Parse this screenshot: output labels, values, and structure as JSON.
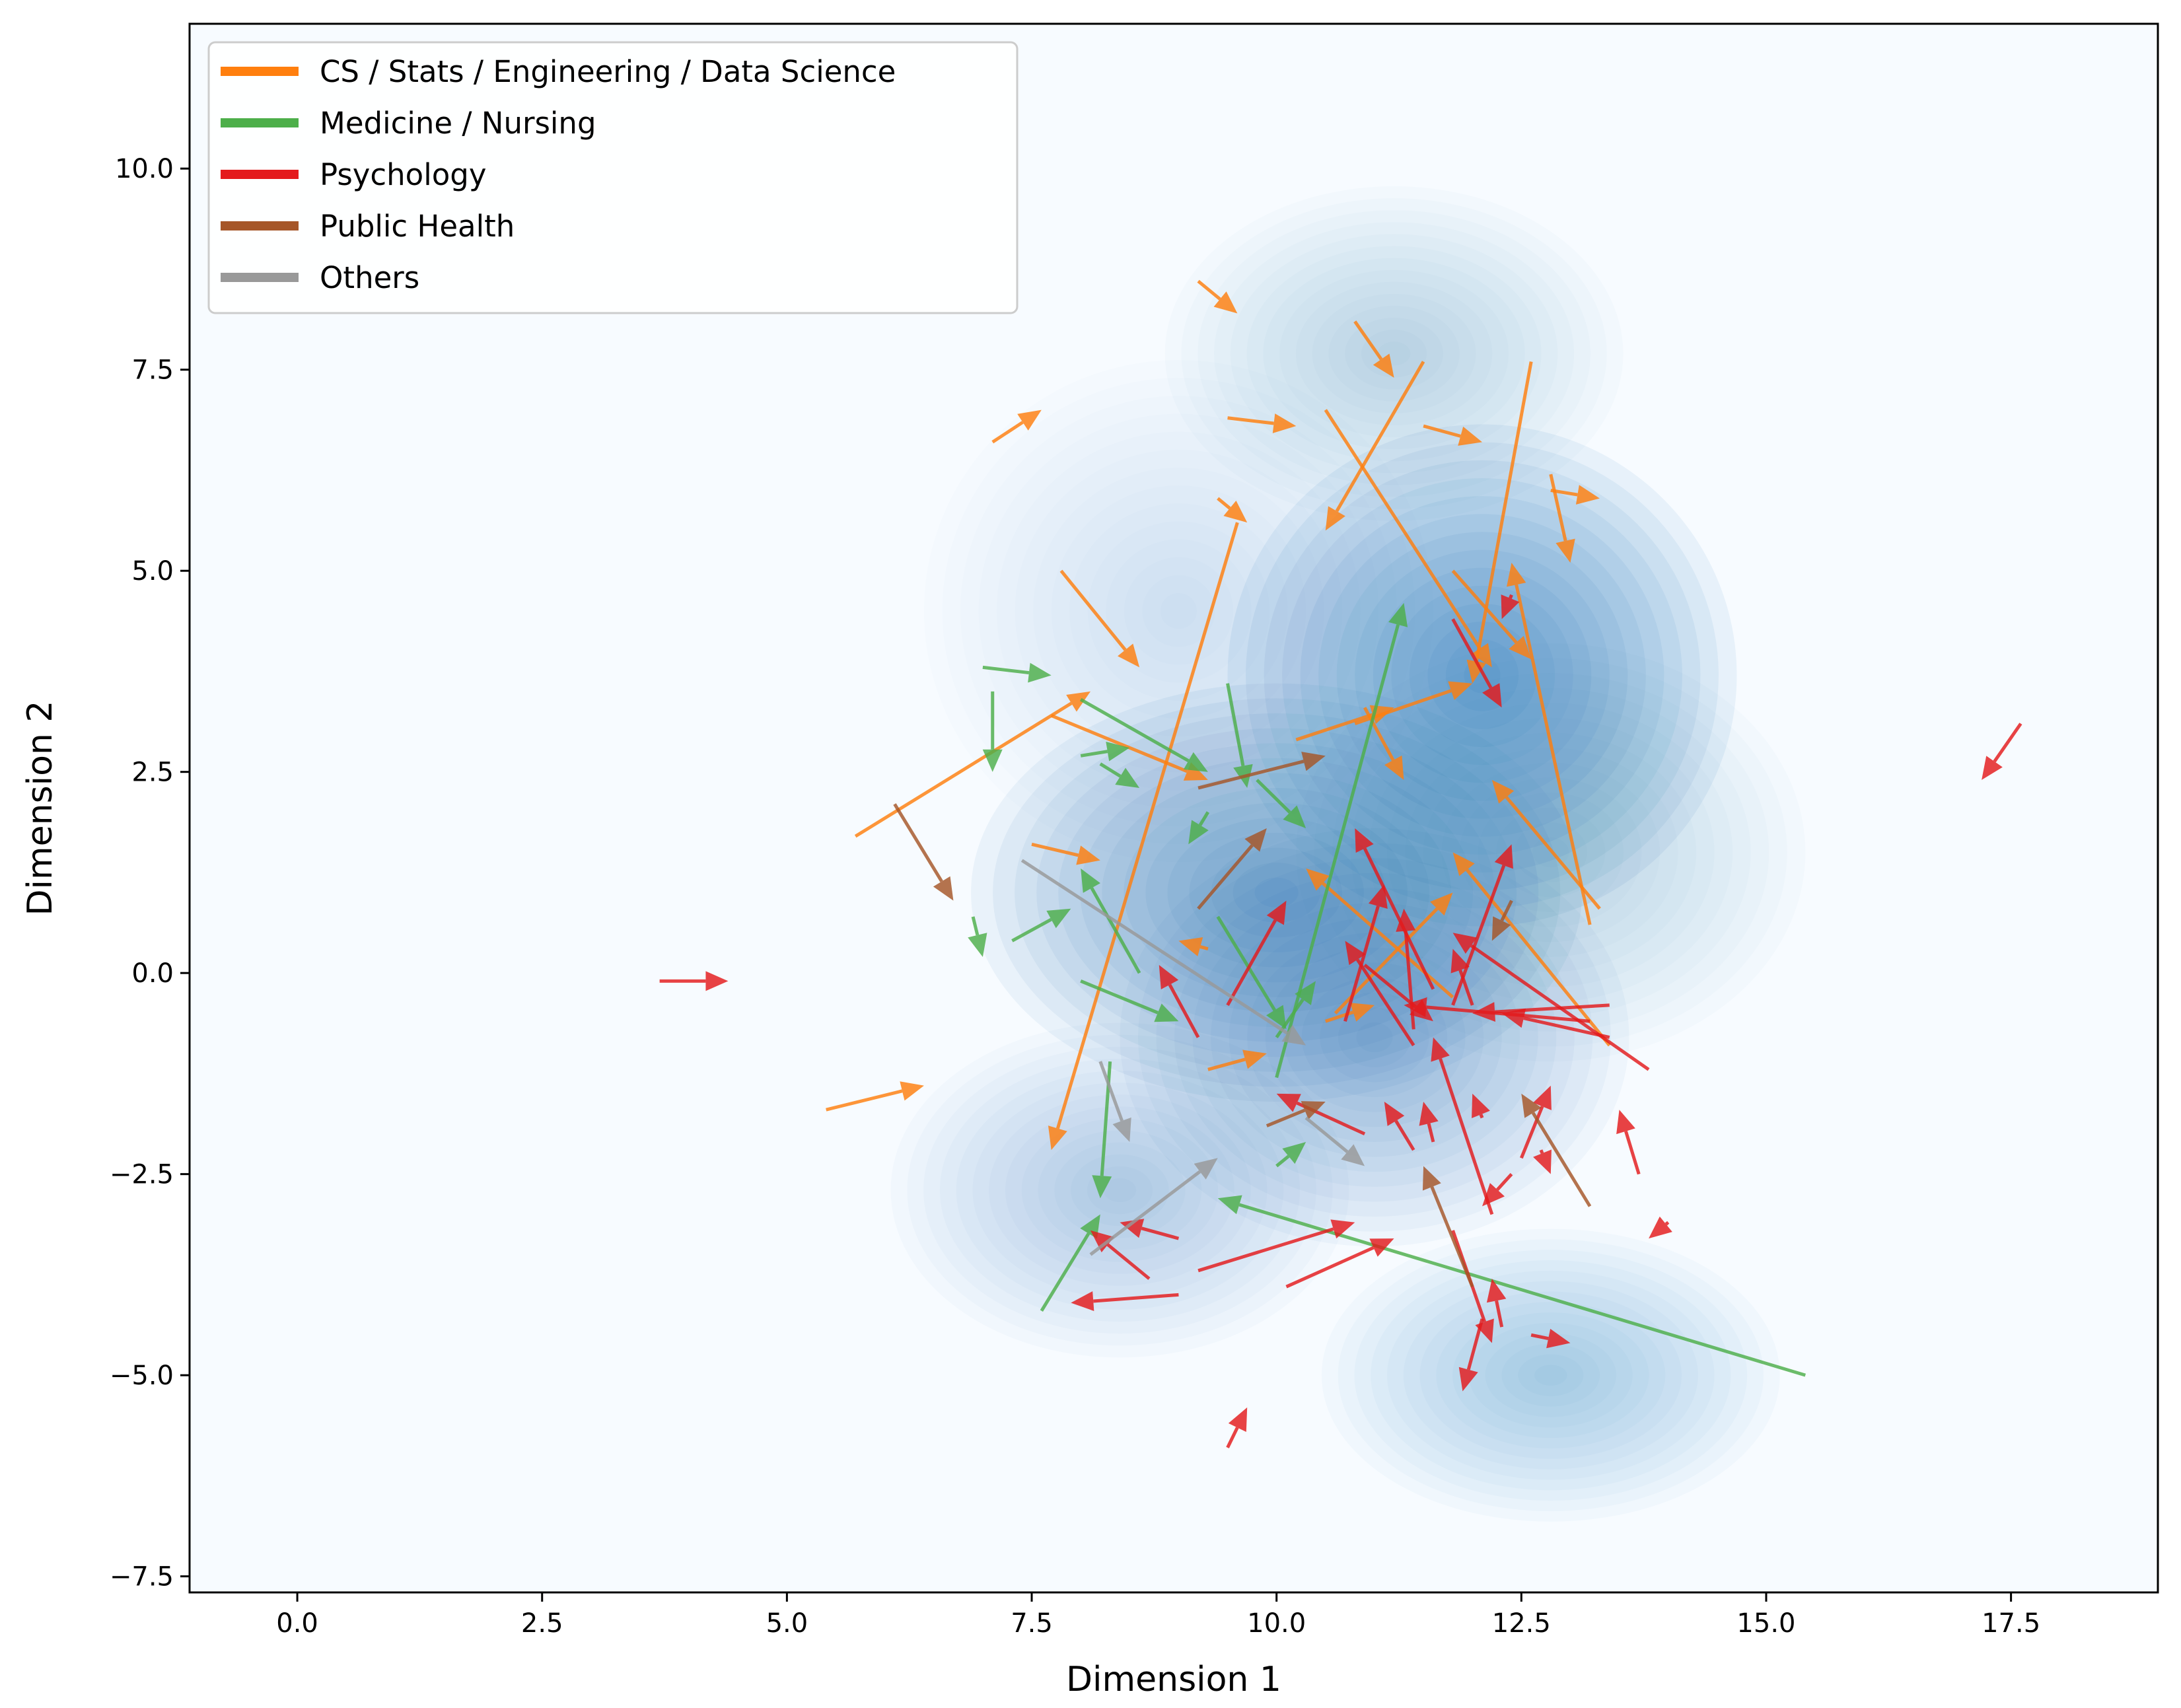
{
  "chart_data": {
    "type": "quiver",
    "xlabel": "Dimension 1",
    "ylabel": "Dimension 2",
    "xlim": [
      -1.1,
      19.0
    ],
    "ylim": [
      -7.7,
      11.8
    ],
    "xticks": [
      0.0,
      2.5,
      5.0,
      7.5,
      10.0,
      12.5,
      15.0,
      17.5
    ],
    "xtick_labels": [
      "0.0",
      "2.5",
      "5.0",
      "7.5",
      "10.0",
      "12.5",
      "15.0",
      "17.5"
    ],
    "yticks": [
      -7.5,
      -5.0,
      -2.5,
      0.0,
      2.5,
      5.0,
      7.5,
      10.0
    ],
    "ytick_labels": [
      "−7.5",
      "−5.0",
      "−2.5",
      "0.0",
      "2.5",
      "5.0",
      "7.5",
      "10.0"
    ],
    "legend_position": "top-left",
    "background": "density-contour",
    "density_centers": [
      {
        "x": 12.1,
        "y": 3.7,
        "sx": 1.0,
        "sy": 1.2,
        "w": 1.0
      },
      {
        "x": 10.0,
        "y": 1.0,
        "sx": 1.2,
        "sy": 1.0,
        "w": 0.9
      },
      {
        "x": 11.2,
        "y": 7.7,
        "sx": 0.9,
        "sy": 0.8,
        "w": 0.35
      },
      {
        "x": 11.0,
        "y": -0.8,
        "sx": 1.0,
        "sy": 1.0,
        "w": 0.55
      },
      {
        "x": 8.4,
        "y": -2.7,
        "sx": 0.9,
        "sy": 0.8,
        "w": 0.4
      },
      {
        "x": 12.8,
        "y": -5.0,
        "sx": 0.9,
        "sy": 0.7,
        "w": 0.45
      },
      {
        "x": 9.0,
        "y": 4.5,
        "sx": 1.0,
        "sy": 1.2,
        "w": 0.2
      },
      {
        "x": 12.8,
        "y": 1.5,
        "sx": 1.0,
        "sy": 1.0,
        "w": 0.35
      }
    ],
    "series": [
      {
        "name": "CS / Stats / Engineering / Data Science",
        "color": "#ff7f0e",
        "arrows": [
          [
            9.2,
            8.6,
            9.6,
            8.2
          ],
          [
            10.8,
            8.1,
            11.2,
            7.4
          ],
          [
            7.1,
            6.6,
            7.6,
            7.0
          ],
          [
            9.5,
            6.9,
            10.2,
            6.8
          ],
          [
            11.5,
            6.8,
            12.1,
            6.6
          ],
          [
            11.5,
            7.6,
            10.5,
            5.5
          ],
          [
            10.5,
            7.0,
            12.2,
            3.8
          ],
          [
            12.6,
            7.6,
            12.0,
            3.6
          ],
          [
            12.8,
            6.0,
            13.3,
            5.9
          ],
          [
            12.8,
            6.2,
            13.0,
            5.1
          ],
          [
            9.4,
            5.9,
            9.7,
            5.6
          ],
          [
            9.6,
            5.6,
            7.7,
            -2.2
          ],
          [
            7.8,
            5.0,
            8.6,
            3.8
          ],
          [
            11.8,
            5.0,
            12.6,
            3.9
          ],
          [
            13.2,
            0.6,
            12.4,
            5.1
          ],
          [
            5.7,
            1.7,
            8.1,
            3.5
          ],
          [
            7.7,
            3.2,
            9.3,
            2.4
          ],
          [
            10.2,
            2.9,
            11.2,
            3.3
          ],
          [
            10.8,
            3.1,
            12.0,
            3.6
          ],
          [
            10.9,
            3.3,
            11.3,
            2.4
          ],
          [
            13.3,
            0.8,
            12.2,
            2.4
          ],
          [
            7.5,
            1.6,
            8.2,
            1.4
          ],
          [
            9.3,
            0.3,
            9.0,
            0.4
          ],
          [
            10.6,
            -0.5,
            11.8,
            1.0
          ],
          [
            11.8,
            -0.3,
            10.3,
            1.3
          ],
          [
            13.4,
            -0.9,
            11.8,
            1.5
          ],
          [
            9.3,
            -1.2,
            9.9,
            -1.0
          ],
          [
            5.4,
            -1.7,
            6.4,
            -1.4
          ],
          [
            10.5,
            -0.6,
            11.0,
            -0.4
          ]
        ]
      },
      {
        "name": "Medicine / Nursing",
        "color": "#4daf4a",
        "arrows": [
          [
            7.0,
            3.8,
            7.7,
            3.7
          ],
          [
            7.1,
            3.5,
            7.1,
            2.5
          ],
          [
            8.0,
            3.4,
            9.3,
            2.5
          ],
          [
            8.0,
            2.7,
            8.5,
            2.8
          ],
          [
            8.2,
            2.6,
            8.6,
            2.3
          ],
          [
            9.5,
            3.6,
            9.7,
            2.3
          ],
          [
            9.8,
            2.4,
            10.3,
            1.8
          ],
          [
            9.3,
            2.0,
            9.1,
            1.6
          ],
          [
            6.9,
            0.7,
            7.0,
            0.2
          ],
          [
            7.3,
            0.4,
            7.9,
            0.8
          ],
          [
            8.6,
            0.0,
            8.0,
            1.3
          ],
          [
            8.0,
            -0.1,
            9.0,
            -0.6
          ],
          [
            9.4,
            0.7,
            10.1,
            -0.7
          ],
          [
            10.0,
            -0.8,
            10.4,
            -0.1
          ],
          [
            10.0,
            -1.3,
            11.3,
            4.6
          ],
          [
            8.3,
            -1.1,
            8.2,
            -2.8
          ],
          [
            10.0,
            -2.4,
            10.3,
            -2.1
          ],
          [
            7.6,
            -4.2,
            8.2,
            -3.0
          ],
          [
            15.4,
            -5.0,
            9.4,
            -2.8
          ]
        ]
      },
      {
        "name": "Psychology",
        "color": "#e41a1c",
        "arrows": [
          [
            3.7,
            -0.1,
            4.4,
            -0.1
          ],
          [
            17.6,
            3.1,
            17.2,
            2.4
          ],
          [
            12.4,
            4.7,
            12.3,
            4.4
          ],
          [
            11.8,
            4.4,
            12.3,
            3.3
          ],
          [
            9.2,
            -0.8,
            8.8,
            0.1
          ],
          [
            9.5,
            -0.4,
            10.1,
            0.9
          ],
          [
            10.7,
            -0.6,
            11.1,
            1.1
          ],
          [
            11.4,
            -0.7,
            11.3,
            0.8
          ],
          [
            11.8,
            -0.4,
            12.4,
            1.6
          ],
          [
            12.0,
            -0.4,
            11.8,
            0.3
          ],
          [
            11.4,
            -0.9,
            10.7,
            0.4
          ],
          [
            10.9,
            0.1,
            11.6,
            -0.6
          ],
          [
            11.6,
            -0.2,
            10.8,
            1.8
          ],
          [
            13.8,
            -1.2,
            11.8,
            0.5
          ],
          [
            13.2,
            -0.6,
            11.3,
            -0.4
          ],
          [
            13.4,
            -0.8,
            12.3,
            -0.5
          ],
          [
            13.4,
            -0.4,
            12.0,
            -0.5
          ],
          [
            10.9,
            -2.0,
            10.0,
            -1.5
          ],
          [
            11.4,
            -2.2,
            11.1,
            -1.6
          ],
          [
            11.6,
            -2.1,
            11.5,
            -1.6
          ],
          [
            12.2,
            -3.0,
            11.6,
            -0.8
          ],
          [
            12.1,
            -1.8,
            12.0,
            -1.5
          ],
          [
            12.4,
            -2.5,
            12.1,
            -2.9
          ],
          [
            12.5,
            -2.3,
            12.8,
            -1.4
          ],
          [
            13.7,
            -2.5,
            13.5,
            -1.7
          ],
          [
            14.0,
            -3.1,
            13.8,
            -3.3
          ],
          [
            12.7,
            -2.2,
            12.8,
            -2.5
          ],
          [
            8.7,
            -3.8,
            8.1,
            -3.2
          ],
          [
            9.0,
            -4.0,
            7.9,
            -4.1
          ],
          [
            10.1,
            -3.9,
            11.2,
            -3.3
          ],
          [
            9.2,
            -3.7,
            10.8,
            -3.1
          ],
          [
            9.0,
            -3.3,
            8.4,
            -3.1
          ],
          [
            11.8,
            -3.2,
            12.2,
            -4.6
          ],
          [
            12.1,
            -4.3,
            11.9,
            -5.2
          ],
          [
            12.3,
            -4.4,
            12.2,
            -3.8
          ],
          [
            12.6,
            -4.5,
            13.0,
            -4.6
          ],
          [
            9.5,
            -5.9,
            9.7,
            -5.4
          ]
        ]
      },
      {
        "name": "Public Health",
        "color": "#a65628",
        "arrows": [
          [
            6.1,
            2.1,
            6.7,
            0.9
          ],
          [
            9.2,
            2.3,
            10.5,
            2.7
          ],
          [
            9.2,
            0.8,
            9.9,
            1.8
          ],
          [
            12.4,
            0.9,
            12.2,
            0.4
          ],
          [
            9.9,
            -1.9,
            10.5,
            -1.6
          ],
          [
            12.0,
            -3.9,
            11.5,
            -2.4
          ],
          [
            13.2,
            -2.9,
            12.5,
            -1.5
          ]
        ]
      },
      {
        "name": "Others",
        "color": "#999999",
        "arrows": [
          [
            7.4,
            1.4,
            10.3,
            -0.9
          ],
          [
            8.2,
            -1.1,
            8.5,
            -2.1
          ],
          [
            8.1,
            -3.5,
            9.4,
            -2.3
          ],
          [
            10.3,
            -1.8,
            10.9,
            -2.4
          ]
        ]
      }
    ]
  }
}
